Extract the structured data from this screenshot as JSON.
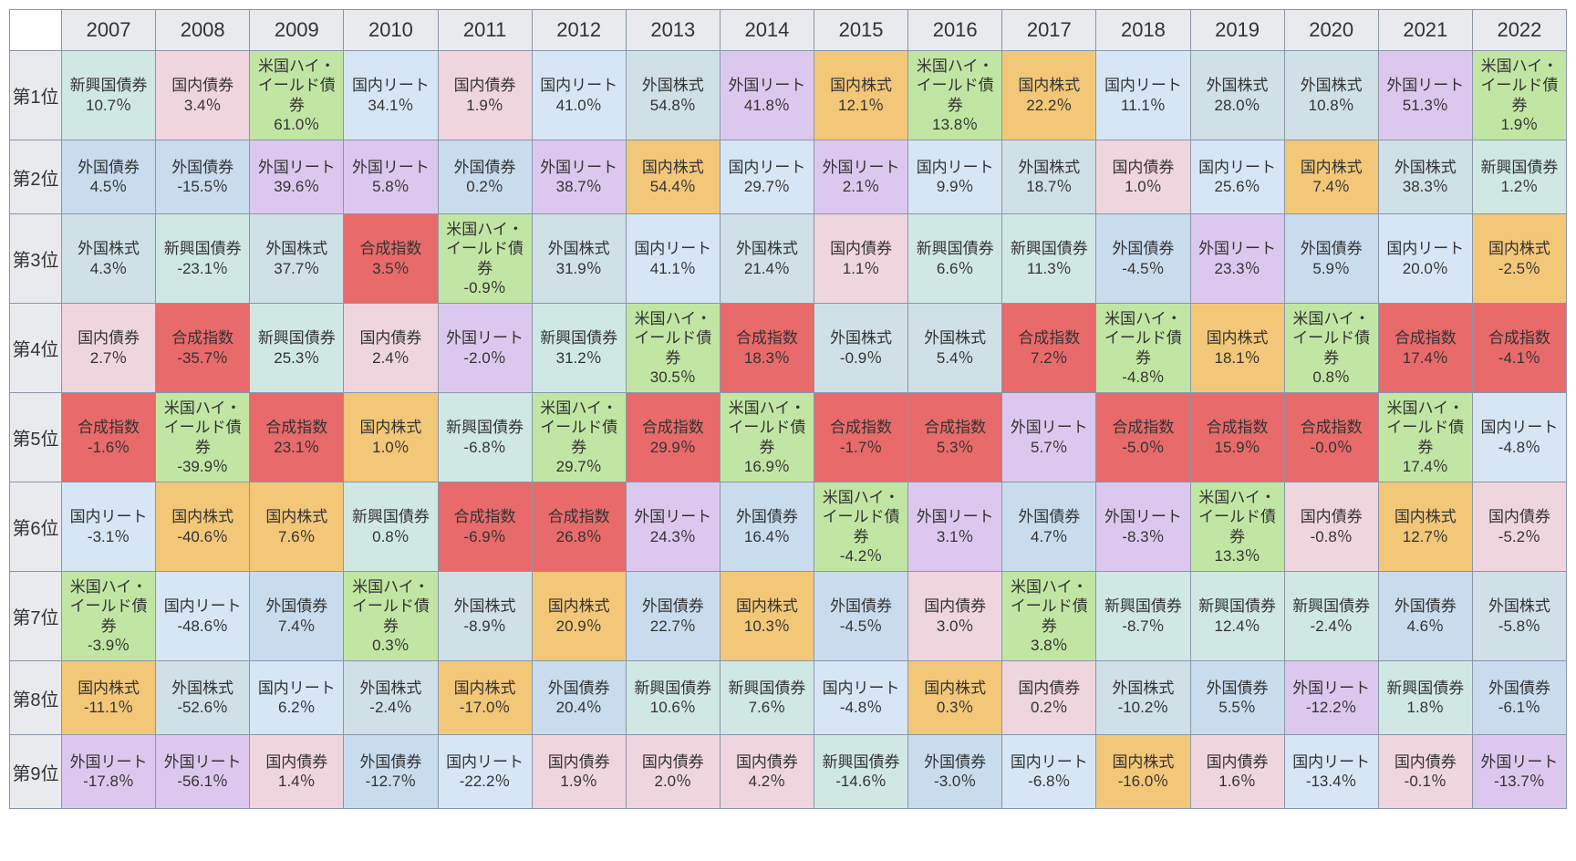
{
  "colors": {
    "新興国債券": "#d0e8e4",
    "外国債券": "#c8dcee",
    "外国株式": "#cfe0e6",
    "国内債券": "#efd5de",
    "合成指数": "#e86a6a",
    "国内リート": "#d6e6f5",
    "米国ハイ・イールド債券": "#c1e6a3",
    "国内株式": "#f3c778",
    "外国リート": "#dcc8ee"
  },
  "years": [
    "2007",
    "2008",
    "2009",
    "2010",
    "2011",
    "2012",
    "2013",
    "2014",
    "2015",
    "2016",
    "2017",
    "2018",
    "2019",
    "2020",
    "2021",
    "2022"
  ],
  "ranks": [
    "第1位",
    "第2位",
    "第3位",
    "第4位",
    "第5位",
    "第6位",
    "第7位",
    "第8位",
    "第9位"
  ],
  "cells": [
    [
      {
        "n": "新興国債券",
        "v": "10.7％"
      },
      {
        "n": "国内債券",
        "v": "3.4％"
      },
      {
        "n": "米国ハイ・イールド債券",
        "v": "61.0％"
      },
      {
        "n": "国内リート",
        "v": "34.1％"
      },
      {
        "n": "国内債券",
        "v": "1.9％"
      },
      {
        "n": "国内リート",
        "v": "41.0％"
      },
      {
        "n": "外国株式",
        "v": "54.8％"
      },
      {
        "n": "外国リート",
        "v": "41.8％"
      },
      {
        "n": "国内株式",
        "v": "12.1％"
      },
      {
        "n": "米国ハイ・イールド債券",
        "v": "13.8％"
      },
      {
        "n": "国内株式",
        "v": "22.2％"
      },
      {
        "n": "国内リート",
        "v": "11.1％"
      },
      {
        "n": "外国株式",
        "v": "28.0％"
      },
      {
        "n": "外国株式",
        "v": "10.8％"
      },
      {
        "n": "外国リート",
        "v": "51.3％"
      },
      {
        "n": "米国ハイ・イールド債券",
        "v": "1.9％"
      }
    ],
    [
      {
        "n": "外国債券",
        "v": "4.5％"
      },
      {
        "n": "外国債券",
        "v": "-15.5％"
      },
      {
        "n": "外国リート",
        "v": "39.6％"
      },
      {
        "n": "外国リート",
        "v": "5.8％"
      },
      {
        "n": "外国債券",
        "v": "0.2％"
      },
      {
        "n": "外国リート",
        "v": "38.7％"
      },
      {
        "n": "国内株式",
        "v": "54.4％"
      },
      {
        "n": "国内リート",
        "v": "29.7％"
      },
      {
        "n": "外国リート",
        "v": "2.1％"
      },
      {
        "n": "国内リート",
        "v": "9.9％"
      },
      {
        "n": "外国株式",
        "v": "18.7％"
      },
      {
        "n": "国内債券",
        "v": "1.0％"
      },
      {
        "n": "国内リート",
        "v": "25.6％"
      },
      {
        "n": "国内株式",
        "v": "7.4％"
      },
      {
        "n": "外国株式",
        "v": "38.3％"
      },
      {
        "n": "新興国債券",
        "v": "1.2％"
      }
    ],
    [
      {
        "n": "外国株式",
        "v": "4.3％"
      },
      {
        "n": "新興国債券",
        "v": "-23.1％"
      },
      {
        "n": "外国株式",
        "v": "37.7％"
      },
      {
        "n": "合成指数",
        "v": "3.5％"
      },
      {
        "n": "米国ハイ・イールド債券",
        "v": "-0.9％"
      },
      {
        "n": "外国株式",
        "v": "31.9％"
      },
      {
        "n": "国内リート",
        "v": "41.1％"
      },
      {
        "n": "外国株式",
        "v": "21.4％"
      },
      {
        "n": "国内債券",
        "v": "1.1％"
      },
      {
        "n": "新興国債券",
        "v": "6.6％"
      },
      {
        "n": "新興国債券",
        "v": "11.3％"
      },
      {
        "n": "外国債券",
        "v": "-4.5％"
      },
      {
        "n": "外国リート",
        "v": "23.3％"
      },
      {
        "n": "外国債券",
        "v": "5.9％"
      },
      {
        "n": "国内リート",
        "v": "20.0％"
      },
      {
        "n": "国内株式",
        "v": "-2.5％"
      }
    ],
    [
      {
        "n": "国内債券",
        "v": "2.7％"
      },
      {
        "n": "合成指数",
        "v": "-35.7％"
      },
      {
        "n": "新興国債券",
        "v": "25.3％"
      },
      {
        "n": "国内債券",
        "v": "2.4％"
      },
      {
        "n": "外国リート",
        "v": "-2.0％"
      },
      {
        "n": "新興国債券",
        "v": "31.2％"
      },
      {
        "n": "米国ハイ・イールド債券",
        "v": "30.5％"
      },
      {
        "n": "合成指数",
        "v": "18.3％"
      },
      {
        "n": "外国株式",
        "v": "-0.9％"
      },
      {
        "n": "外国株式",
        "v": "5.4％"
      },
      {
        "n": "合成指数",
        "v": "7.2％"
      },
      {
        "n": "米国ハイ・イールド債券",
        "v": "-4.8％"
      },
      {
        "n": "国内株式",
        "v": "18.1％"
      },
      {
        "n": "米国ハイ・イールド債券",
        "v": "0.8％"
      },
      {
        "n": "合成指数",
        "v": "17.4％"
      },
      {
        "n": "合成指数",
        "v": "-4.1％"
      }
    ],
    [
      {
        "n": "合成指数",
        "v": "-1.6％"
      },
      {
        "n": "米国ハイ・イールド債券",
        "v": "-39.9％"
      },
      {
        "n": "合成指数",
        "v": "23.1％"
      },
      {
        "n": "国内株式",
        "v": "1.0％"
      },
      {
        "n": "新興国債券",
        "v": "-6.8％"
      },
      {
        "n": "米国ハイ・イールド債券",
        "v": "29.7％"
      },
      {
        "n": "合成指数",
        "v": "29.9％"
      },
      {
        "n": "米国ハイ・イールド債券",
        "v": "16.9％"
      },
      {
        "n": "合成指数",
        "v": "-1.7％"
      },
      {
        "n": "合成指数",
        "v": "5.3％"
      },
      {
        "n": "外国リート",
        "v": "5.7％"
      },
      {
        "n": "合成指数",
        "v": "-5.0％"
      },
      {
        "n": "合成指数",
        "v": "15.9％"
      },
      {
        "n": "合成指数",
        "v": "-0.0％"
      },
      {
        "n": "米国ハイ・イールド債券",
        "v": "17.4％"
      },
      {
        "n": "国内リート",
        "v": "-4.8％"
      }
    ],
    [
      {
        "n": "国内リート",
        "v": "-3.1％"
      },
      {
        "n": "国内株式",
        "v": "-40.6％"
      },
      {
        "n": "国内株式",
        "v": "7.6％"
      },
      {
        "n": "新興国債券",
        "v": "0.8％"
      },
      {
        "n": "合成指数",
        "v": "-6.9％"
      },
      {
        "n": "合成指数",
        "v": "26.8％"
      },
      {
        "n": "外国リート",
        "v": "24.3％"
      },
      {
        "n": "外国債券",
        "v": "16.4％"
      },
      {
        "n": "米国ハイ・イールド債券",
        "v": "-4.2％"
      },
      {
        "n": "外国リート",
        "v": "3.1％"
      },
      {
        "n": "外国債券",
        "v": "4.7％"
      },
      {
        "n": "外国リート",
        "v": "-8.3％"
      },
      {
        "n": "米国ハイ・イールド債券",
        "v": "13.3％"
      },
      {
        "n": "国内債券",
        "v": "-0.8％"
      },
      {
        "n": "国内株式",
        "v": "12.7％"
      },
      {
        "n": "国内債券",
        "v": "-5.2％"
      }
    ],
    [
      {
        "n": "米国ハイ・イールド債券",
        "v": "-3.9％"
      },
      {
        "n": "国内リート",
        "v": "-48.6％"
      },
      {
        "n": "外国債券",
        "v": "7.4％"
      },
      {
        "n": "米国ハイ・イールド債券",
        "v": "0.3％"
      },
      {
        "n": "外国株式",
        "v": "-8.9％"
      },
      {
        "n": "国内株式",
        "v": "20.9％"
      },
      {
        "n": "外国債券",
        "v": "22.7％"
      },
      {
        "n": "国内株式",
        "v": "10.3％"
      },
      {
        "n": "外国債券",
        "v": "-4.5％"
      },
      {
        "n": "国内債券",
        "v": "3.0％"
      },
      {
        "n": "米国ハイ・イールド債券",
        "v": "3.8％"
      },
      {
        "n": "新興国債券",
        "v": "-8.7％"
      },
      {
        "n": "新興国債券",
        "v": "12.4％"
      },
      {
        "n": "新興国債券",
        "v": "-2.4％"
      },
      {
        "n": "外国債券",
        "v": "4.6％"
      },
      {
        "n": "外国株式",
        "v": "-5.8％"
      }
    ],
    [
      {
        "n": "国内株式",
        "v": "-11.1％"
      },
      {
        "n": "外国株式",
        "v": "-52.6％"
      },
      {
        "n": "国内リート",
        "v": "6.2％"
      },
      {
        "n": "外国株式",
        "v": "-2.4％"
      },
      {
        "n": "国内株式",
        "v": "-17.0％"
      },
      {
        "n": "外国債券",
        "v": "20.4％"
      },
      {
        "n": "新興国債券",
        "v": "10.6％"
      },
      {
        "n": "新興国債券",
        "v": "7.6％"
      },
      {
        "n": "国内リート",
        "v": "-4.8％"
      },
      {
        "n": "国内株式",
        "v": "0.3％"
      },
      {
        "n": "国内債券",
        "v": "0.2％"
      },
      {
        "n": "外国株式",
        "v": "-10.2％"
      },
      {
        "n": "外国債券",
        "v": "5.5％"
      },
      {
        "n": "外国リート",
        "v": "-12.2％"
      },
      {
        "n": "新興国債券",
        "v": "1.8％"
      },
      {
        "n": "外国債券",
        "v": "-6.1％"
      }
    ],
    [
      {
        "n": "外国リート",
        "v": "-17.8％"
      },
      {
        "n": "外国リート",
        "v": "-56.1％"
      },
      {
        "n": "国内債券",
        "v": "1.4％"
      },
      {
        "n": "外国債券",
        "v": "-12.7％"
      },
      {
        "n": "国内リート",
        "v": "-22.2％"
      },
      {
        "n": "国内債券",
        "v": "1.9％"
      },
      {
        "n": "国内債券",
        "v": "2.0％"
      },
      {
        "n": "国内債券",
        "v": "4.2％"
      },
      {
        "n": "新興国債券",
        "v": "-14.6％"
      },
      {
        "n": "外国債券",
        "v": "-3.0％"
      },
      {
        "n": "国内リート",
        "v": "-6.8％"
      },
      {
        "n": "国内株式",
        "v": "-16.0％"
      },
      {
        "n": "国内債券",
        "v": "1.6％"
      },
      {
        "n": "国内リート",
        "v": "-13.4％"
      },
      {
        "n": "国内債券",
        "v": "-0.1％"
      },
      {
        "n": "外国リート",
        "v": "-13.7％"
      }
    ]
  ]
}
